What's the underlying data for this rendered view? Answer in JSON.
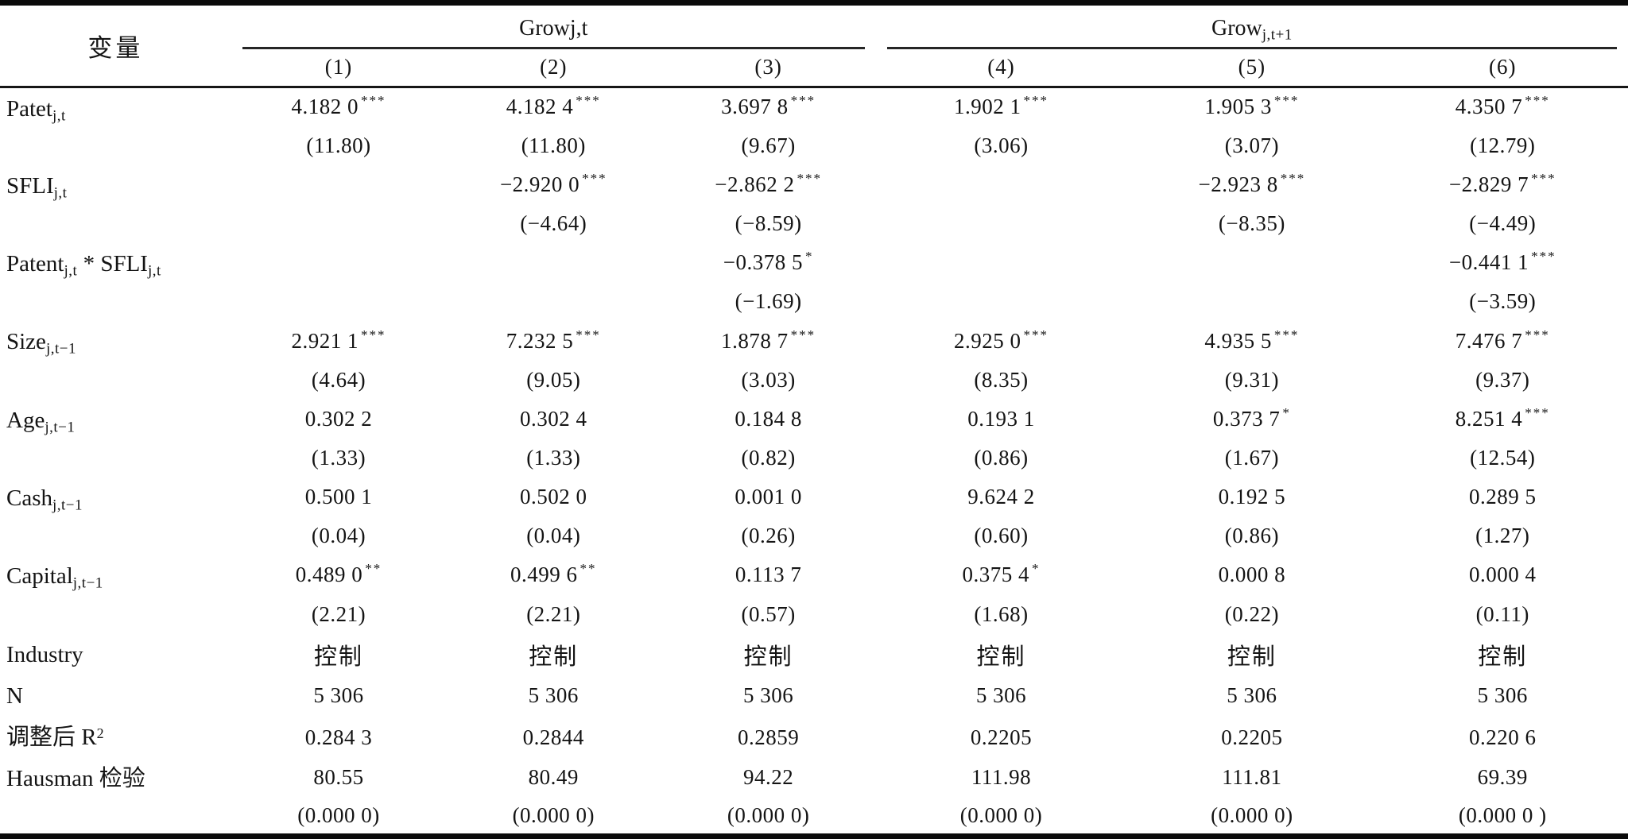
{
  "table": {
    "header": {
      "var_label": "变量",
      "groups": [
        {
          "segments": [
            {
              "t": "Growj,t"
            }
          ],
          "cols": [
            "(1)",
            "(2)",
            "(3)"
          ]
        },
        {
          "segments": [
            {
              "t": "Grow"
            },
            {
              "t": "j,t+1",
              "sub": true
            }
          ],
          "cols": [
            "(4)",
            "(5)",
            "(6)"
          ]
        }
      ]
    },
    "rows": [
      {
        "label": [
          {
            "t": "Patet"
          },
          {
            "t": "j,t",
            "sub": true
          }
        ],
        "lines": [
          {
            "cells": [
              {
                "v": "4.182 0",
                "s": "***"
              },
              {
                "v": "4.182 4",
                "s": "***"
              },
              {
                "v": "3.697 8",
                "s": "***"
              },
              {
                "v": "1.902 1",
                "s": "***"
              },
              {
                "v": "1.905 3",
                "s": "***"
              },
              {
                "v": "4.350 7",
                "s": "***"
              }
            ]
          },
          {
            "cells": [
              {
                "v": "(11.80)"
              },
              {
                "v": "(11.80)"
              },
              {
                "v": "(9.67)"
              },
              {
                "v": "(3.06)"
              },
              {
                "v": "(3.07)"
              },
              {
                "v": "(12.79)"
              }
            ]
          }
        ]
      },
      {
        "label": [
          {
            "t": "SFLI"
          },
          {
            "t": "j,t",
            "sub": true
          }
        ],
        "lines": [
          {
            "cells": [
              {
                "v": ""
              },
              {
                "v": "−2.920 0",
                "s": "***"
              },
              {
                "v": "−2.862 2",
                "s": "***"
              },
              {
                "v": ""
              },
              {
                "v": "−2.923 8",
                "s": "***"
              },
              {
                "v": "−2.829 7",
                "s": "***"
              }
            ]
          },
          {
            "cells": [
              {
                "v": ""
              },
              {
                "v": "(−4.64)"
              },
              {
                "v": "(−8.59)"
              },
              {
                "v": ""
              },
              {
                "v": "(−8.35)"
              },
              {
                "v": "(−4.49)"
              }
            ]
          }
        ]
      },
      {
        "label": [
          {
            "t": "Patent"
          },
          {
            "t": "j,t",
            "sub": true
          },
          {
            "t": " * "
          },
          {
            "t": "SFLI"
          },
          {
            "t": "j,t",
            "sub": true
          }
        ],
        "lines": [
          {
            "cells": [
              {
                "v": ""
              },
              {
                "v": ""
              },
              {
                "v": "−0.378 5",
                "s": "*"
              },
              {
                "v": ""
              },
              {
                "v": ""
              },
              {
                "v": "−0.441 1",
                "s": "***"
              }
            ]
          },
          {
            "cells": [
              {
                "v": ""
              },
              {
                "v": ""
              },
              {
                "v": "(−1.69)"
              },
              {
                "v": ""
              },
              {
                "v": ""
              },
              {
                "v": "(−3.59)"
              }
            ]
          }
        ]
      },
      {
        "label": [
          {
            "t": "Size"
          },
          {
            "t": "j,t−1",
            "sub": true
          }
        ],
        "lines": [
          {
            "cells": [
              {
                "v": "2.921 1",
                "s": "***"
              },
              {
                "v": "7.232 5",
                "s": "***"
              },
              {
                "v": "1.878 7",
                "s": "***"
              },
              {
                "v": "2.925 0",
                "s": "***"
              },
              {
                "v": "4.935 5",
                "s": "***"
              },
              {
                "v": "7.476 7",
                "s": "***"
              }
            ]
          },
          {
            "cells": [
              {
                "v": "(4.64)"
              },
              {
                "v": "(9.05)"
              },
              {
                "v": "(3.03)"
              },
              {
                "v": "(8.35)"
              },
              {
                "v": "(9.31)"
              },
              {
                "v": "(9.37)"
              }
            ]
          }
        ]
      },
      {
        "label": [
          {
            "t": "Age"
          },
          {
            "t": "j,t−1",
            "sub": true
          }
        ],
        "lines": [
          {
            "cells": [
              {
                "v": "0.302 2"
              },
              {
                "v": "0.302 4"
              },
              {
                "v": "0.184 8"
              },
              {
                "v": "0.193 1"
              },
              {
                "v": "0.373 7",
                "s": "*"
              },
              {
                "v": "8.251 4",
                "s": "***"
              }
            ]
          },
          {
            "cells": [
              {
                "v": "(1.33)"
              },
              {
                "v": "(1.33)"
              },
              {
                "v": "(0.82)"
              },
              {
                "v": "(0.86)"
              },
              {
                "v": "(1.67)"
              },
              {
                "v": "(12.54)"
              }
            ]
          }
        ]
      },
      {
        "label": [
          {
            "t": "Cash"
          },
          {
            "t": "j,t−1",
            "sub": true
          }
        ],
        "lines": [
          {
            "cells": [
              {
                "v": "0.500 1"
              },
              {
                "v": "0.502 0"
              },
              {
                "v": "0.001 0"
              },
              {
                "v": "9.624 2"
              },
              {
                "v": "0.192 5"
              },
              {
                "v": "0.289 5"
              }
            ]
          },
          {
            "cells": [
              {
                "v": "(0.04)"
              },
              {
                "v": "(0.04)"
              },
              {
                "v": "(0.26)"
              },
              {
                "v": "(0.60)"
              },
              {
                "v": "(0.86)"
              },
              {
                "v": "(1.27)"
              }
            ]
          }
        ]
      },
      {
        "label": [
          {
            "t": "Capital"
          },
          {
            "t": "j,t−1",
            "sub": true
          }
        ],
        "lines": [
          {
            "cells": [
              {
                "v": "0.489 0",
                "s": "**"
              },
              {
                "v": "0.499 6",
                "s": "**"
              },
              {
                "v": "0.113 7"
              },
              {
                "v": "0.375 4",
                "s": "*"
              },
              {
                "v": "0.000 8"
              },
              {
                "v": "0.000 4"
              }
            ]
          },
          {
            "cells": [
              {
                "v": "(2.21)"
              },
              {
                "v": "(2.21)"
              },
              {
                "v": "(0.57)"
              },
              {
                "v": "(1.68)"
              },
              {
                "v": "(0.22)"
              },
              {
                "v": "(0.11)"
              }
            ]
          }
        ]
      },
      {
        "label": [
          {
            "t": "Industry"
          }
        ],
        "lines": [
          {
            "cells": [
              {
                "v": "控制"
              },
              {
                "v": "控制"
              },
              {
                "v": "控制"
              },
              {
                "v": "控制"
              },
              {
                "v": "控制"
              },
              {
                "v": "控制"
              }
            ]
          }
        ]
      },
      {
        "label": [
          {
            "t": "N"
          }
        ],
        "lines": [
          {
            "cells": [
              {
                "v": "5 306"
              },
              {
                "v": "5 306"
              },
              {
                "v": "5 306"
              },
              {
                "v": "5 306"
              },
              {
                "v": "5 306"
              },
              {
                "v": "5 306"
              }
            ]
          }
        ]
      },
      {
        "label": [
          {
            "t": "调整后 R"
          },
          {
            "t": "2",
            "sup": true
          }
        ],
        "lines": [
          {
            "cells": [
              {
                "v": "0.284 3"
              },
              {
                "v": "0.2844"
              },
              {
                "v": "0.2859"
              },
              {
                "v": "0.2205"
              },
              {
                "v": "0.2205"
              },
              {
                "v": "0.220 6"
              }
            ]
          }
        ]
      },
      {
        "label": [
          {
            "t": "Hausman 检验"
          }
        ],
        "lines": [
          {
            "cells": [
              {
                "v": "80.55"
              },
              {
                "v": "80.49"
              },
              {
                "v": "94.22"
              },
              {
                "v": "111.98"
              },
              {
                "v": "111.81"
              },
              {
                "v": "69.39"
              }
            ]
          },
          {
            "cells": [
              {
                "v": "(0.000 0)"
              },
              {
                "v": "(0.000 0)"
              },
              {
                "v": "(0.000 0)"
              },
              {
                "v": "(0.000 0)"
              },
              {
                "v": "(0.000 0)"
              },
              {
                "v": "(0.000 0 )"
              }
            ]
          }
        ]
      }
    ]
  }
}
